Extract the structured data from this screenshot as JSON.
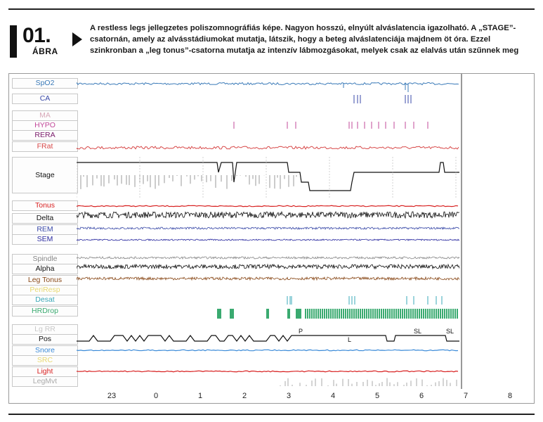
{
  "figure": {
    "number": "01.",
    "word": "ÁBRA",
    "caption": "A restless legs jellegzetes poliszomnográfiás képe. Nagyon hosszú, elnyúlt alváslatencia igazolható. A „STAGE”-csatornán, amely az alvásstádiumokat mutatja, látszik, hogy a beteg alváslatenciája majdnem öt óra. Ezzel szinkronban a „leg tonus”-csatorna mutatja az intenzív lábmozgásokat, melyek csak az elalvás után szűnnek meg"
  },
  "channels": [
    {
      "label": "SpO2",
      "color": "#3a7ab8"
    },
    {
      "label": "CA",
      "color": "#3a4aa8"
    },
    {
      "label": "MA",
      "color": "#d8a8b8"
    },
    {
      "label": "HYPO",
      "color": "#c24a9a"
    },
    {
      "label": "RERA",
      "color": "#7a1a6a"
    },
    {
      "label": "FRat",
      "color": "#d84a4a"
    },
    {
      "label": "Stage",
      "color": "#111111"
    },
    {
      "label": "Tonus",
      "color": "#d82020"
    },
    {
      "label": "Delta",
      "color": "#111111"
    },
    {
      "label": "REM",
      "color": "#3a4aa8"
    },
    {
      "label": "SEM",
      "color": "#2a2aa0"
    },
    {
      "label": "Spindle",
      "color": "#888888"
    },
    {
      "label": "Alpha",
      "color": "#111111"
    },
    {
      "label": "Leg Tonus",
      "color": "#8a4a1a"
    },
    {
      "label": "PeriResp",
      "color": "#e8d870"
    },
    {
      "label": "Desat",
      "color": "#3aa8b8"
    },
    {
      "label": "HRDrop",
      "color": "#3aaa70"
    },
    {
      "label": "Lg RR",
      "color": "#c8c8c8"
    },
    {
      "label": "Pos",
      "color": "#111111"
    },
    {
      "label": "Snore",
      "color": "#3a8ad8"
    },
    {
      "label": "SRC",
      "color": "#e8d870"
    },
    {
      "label": "Light",
      "color": "#d82020"
    },
    {
      "label": "LegMvt",
      "color": "#aaaaaa"
    }
  ],
  "position_labels": [
    "P",
    "L",
    "SL",
    "SL"
  ],
  "time_axis": [
    "23",
    "0",
    "1",
    "2",
    "3",
    "4",
    "5",
    "6",
    "7",
    "8"
  ]
}
